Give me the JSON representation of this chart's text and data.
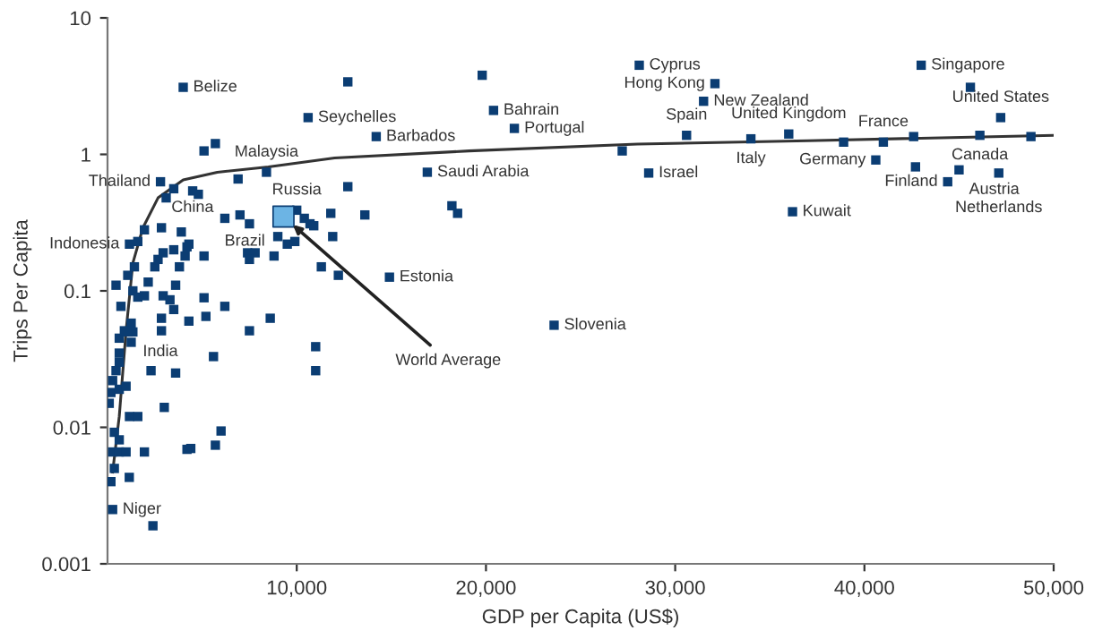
{
  "chart_data": {
    "type": "scatter",
    "xlabel": "GDP per Capita (US$)",
    "ylabel": "Trips Per Capita",
    "log": "y",
    "xlim": [
      0,
      50000
    ],
    "ylim": [
      0.001,
      10
    ],
    "xticks": [
      {
        "value": 10000,
        "label": "10,000"
      },
      {
        "value": 20000,
        "label": "20,000"
      },
      {
        "value": 30000,
        "label": "30,000"
      },
      {
        "value": 40000,
        "label": "40,000"
      },
      {
        "value": 50000,
        "label": "50,000"
      }
    ],
    "yticks": [
      0.001,
      0.01,
      0.1,
      1,
      10
    ],
    "grid": false,
    "legend": false,
    "marker": "square",
    "series": [
      {
        "color": "#0b3d73",
        "x": [
          4000,
          12700,
          10600,
          14200,
          5100,
          5700,
          8400,
          6900,
          12700,
          2800,
          3100,
          3500,
          4500,
          4800,
          6200,
          7000,
          7500,
          10000,
          10400,
          10700,
          10900,
          11800,
          13600,
          11900,
          9000,
          9500,
          9900,
          8800,
          11300,
          12200,
          7400,
          7800,
          7500,
          14900,
          8600,
          7500,
          11000,
          11000,
          6200,
          5100,
          5200,
          4300,
          5600,
          3600,
          2300,
          3000,
          6000,
          5700,
          4400,
          4200,
          1950,
          2400,
          270,
          180,
          1150,
          360,
          360,
          620,
          270,
          620,
          980,
          90,
          180,
          620,
          980,
          270,
          450,
          620,
          620,
          620,
          1100,
          1250,
          1340,
          710,
          450,
          1070,
          1420,
          1340,
          1160,
          1600,
          1950,
          1250,
          1600,
          1950,
          2150,
          2500,
          2670,
          2940,
          2850,
          3500,
          3900,
          4200,
          4300,
          4100,
          3800,
          5100,
          3600,
          2940,
          3300,
          3500,
          2850,
          2850,
          1600,
          1160,
          890,
          19800,
          20400,
          21500,
          16900,
          18200,
          18500,
          23600,
          28100,
          32100,
          31500,
          30600,
          27200,
          28600,
          34000,
          36000,
          36200,
          38900,
          41000,
          40600,
          42600,
          42700,
          43000,
          45600,
          45000,
          44400,
          46100,
          47200,
          48800,
          47100
        ],
        "values": [
          3.1,
          3.4,
          1.86,
          1.35,
          1.06,
          1.2,
          0.74,
          0.66,
          0.58,
          0.63,
          0.48,
          0.56,
          0.54,
          0.51,
          0.34,
          0.36,
          0.31,
          0.39,
          0.34,
          0.31,
          0.3,
          0.37,
          0.36,
          0.25,
          0.25,
          0.22,
          0.23,
          0.18,
          0.15,
          0.13,
          0.19,
          0.19,
          0.17,
          0.126,
          0.063,
          0.051,
          0.039,
          0.026,
          0.077,
          0.089,
          0.065,
          0.06,
          0.033,
          0.025,
          0.026,
          0.014,
          0.0094,
          0.0074,
          0.007,
          0.0069,
          0.0066,
          0.0019,
          0.0025,
          0.004,
          0.0043,
          0.005,
          0.0092,
          0.0081,
          0.0066,
          0.0066,
          0.0066,
          0.015,
          0.018,
          0.019,
          0.02,
          0.022,
          0.026,
          0.03,
          0.035,
          0.045,
          0.05,
          0.042,
          0.05,
          0.077,
          0.11,
          0.13,
          0.15,
          0.1,
          0.22,
          0.23,
          0.28,
          0.058,
          0.09,
          0.092,
          0.116,
          0.15,
          0.17,
          0.19,
          0.29,
          0.2,
          0.27,
          0.21,
          0.22,
          0.18,
          0.15,
          0.18,
          0.11,
          0.092,
          0.086,
          0.073,
          0.063,
          0.051,
          0.012,
          0.012,
          0.051,
          3.8,
          2.1,
          1.55,
          0.74,
          0.42,
          0.37,
          0.056,
          4.5,
          3.3,
          2.45,
          1.38,
          1.06,
          0.73,
          1.3,
          1.41,
          0.38,
          1.23,
          1.23,
          0.91,
          1.35,
          0.81,
          4.5,
          3.1,
          0.77,
          0.63,
          1.38,
          1.86,
          1.35,
          0.73
        ]
      },
      {
        "color": "#6cb4e4",
        "x": [
          9300
        ],
        "values": [
          0.35
        ]
      },
      {
        "type": "line",
        "color": "#333333",
        "marker": "none",
        "x": [
          270,
          620,
          980,
          1340,
          1870,
          2670,
          4000,
          5800,
          8500,
          12000,
          19100,
          28000,
          37000,
          50000
        ],
        "values": [
          0.0047,
          0.012,
          0.051,
          0.16,
          0.29,
          0.48,
          0.65,
          0.74,
          0.81,
          0.94,
          1.06,
          1.19,
          1.26,
          1.38
        ]
      }
    ],
    "annotations": [
      {
        "text": "Belize",
        "x": 4000,
        "y": 3.1
      },
      {
        "text": "Seychelles",
        "x": 10600,
        "y": 1.86
      },
      {
        "text": "Barbados",
        "x": 14200,
        "y": 1.35
      },
      {
        "text": "Malaysia",
        "x": 8400,
        "y": 0.74
      },
      {
        "text": "Thailand",
        "x": 2800,
        "y": 0.63
      },
      {
        "text": "Indonesia",
        "x": 1160,
        "y": 0.22
      },
      {
        "text": "China",
        "x": 2850,
        "y": 0.29
      },
      {
        "text": "Russia",
        "x": 10000,
        "y": 0.39
      },
      {
        "text": "Brazil",
        "x": 9900,
        "y": 0.23
      },
      {
        "text": "India",
        "x": 1340,
        "y": 0.05
      },
      {
        "text": "Niger",
        "x": 270,
        "y": 0.0025
      },
      {
        "text": "World Average",
        "x": 9300,
        "y": 0.35
      },
      {
        "text": "Estonia",
        "x": 14900,
        "y": 0.126
      },
      {
        "text": "Saudi Arabia",
        "x": 16900,
        "y": 0.74
      },
      {
        "text": "Bahrain",
        "x": 20400,
        "y": 2.1
      },
      {
        "text": "Portugal",
        "x": 21500,
        "y": 1.55
      },
      {
        "text": "Cyprus",
        "x": 28100,
        "y": 4.5
      },
      {
        "text": "New Zealand",
        "x": 31500,
        "y": 2.45
      },
      {
        "text": "Hong Kong",
        "x": 32100,
        "y": 3.3
      },
      {
        "text": "Spain",
        "x": 30600,
        "y": 1.38
      },
      {
        "text": "Israel",
        "x": 28600,
        "y": 0.73
      },
      {
        "text": "Slovenia",
        "x": 23600,
        "y": 0.056
      },
      {
        "text": "Italy",
        "x": 34000,
        "y": 1.3
      },
      {
        "text": "United Kingdom",
        "x": 36000,
        "y": 1.41
      },
      {
        "text": "Kuwait",
        "x": 36200,
        "y": 0.38
      },
      {
        "text": "France",
        "x": 41000,
        "y": 1.23
      },
      {
        "text": "Germany",
        "x": 40600,
        "y": 0.91
      },
      {
        "text": "Singapore",
        "x": 43000,
        "y": 4.5
      },
      {
        "text": "Canada",
        "x": 46100,
        "y": 1.38
      },
      {
        "text": "United States",
        "x": 47200,
        "y": 1.86
      },
      {
        "text": "Austria",
        "x": 45000,
        "y": 0.77
      },
      {
        "text": "Netherlands",
        "x": 47100,
        "y": 0.73
      },
      {
        "text": "Finland",
        "x": 44400,
        "y": 0.63
      }
    ]
  }
}
